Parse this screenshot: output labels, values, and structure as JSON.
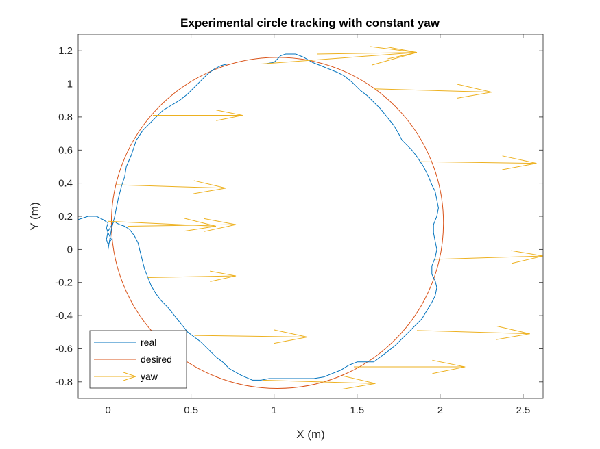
{
  "chart_data": {
    "type": "line",
    "title": "Experimental circle tracking with constant yaw",
    "xlabel": "X (m)",
    "ylabel": "Y (m)",
    "xlim": [
      -0.18,
      2.62
    ],
    "ylim": [
      -0.9,
      1.3
    ],
    "xticks": [
      0,
      0.5,
      1,
      1.5,
      2,
      2.5
    ],
    "xtick_labels": [
      "0",
      "0.5",
      "1",
      "1.5",
      "2",
      "2.5"
    ],
    "yticks": [
      -0.8,
      -0.6,
      -0.4,
      -0.2,
      0,
      0.2,
      0.4,
      0.6,
      0.8,
      1,
      1.2
    ],
    "ytick_labels": [
      "-0.8",
      "-0.6",
      "-0.4",
      "-0.2",
      "0",
      "0.2",
      "0.4",
      "0.6",
      "0.8",
      "1",
      "1.2"
    ],
    "grid": false,
    "legend_placement": "bottom-left",
    "colors": {
      "real": "#0072BD",
      "desired": "#D95319",
      "yaw": "#EDB120"
    },
    "series": [
      {
        "name": "real",
        "x": [
          -0.18,
          -0.12,
          -0.07,
          -0.03,
          0.0,
          -0.01,
          0.0,
          0.02,
          0.0,
          -0.01,
          0.0,
          0.03,
          0.04,
          0.05,
          0.06,
          0.08,
          0.1,
          0.11,
          0.14,
          0.17,
          0.21,
          0.25,
          0.29,
          0.33,
          0.38,
          0.43,
          0.48,
          0.52,
          0.56,
          0.6,
          0.64,
          0.68,
          0.72,
          0.78,
          0.86,
          0.94,
          1.0,
          1.04,
          1.07,
          1.1,
          1.13,
          1.18,
          1.23,
          1.28,
          1.33,
          1.38,
          1.42,
          1.47,
          1.52,
          1.56,
          1.6,
          1.64,
          1.68,
          1.72,
          1.75,
          1.77,
          1.8,
          1.83,
          1.86,
          1.88,
          1.9,
          1.91,
          1.93,
          1.95,
          1.97,
          1.98,
          1.99,
          1.98,
          1.96,
          1.96,
          1.97,
          1.98,
          1.97,
          1.95,
          1.95,
          1.97,
          1.98,
          1.97,
          1.95,
          1.92,
          1.89,
          1.85,
          1.81,
          1.77,
          1.73,
          1.68,
          1.64,
          1.6,
          1.55,
          1.5,
          1.45,
          1.4,
          1.35,
          1.3,
          1.24,
          1.17,
          1.1,
          1.03,
          0.97,
          0.92,
          0.87,
          0.8,
          0.73,
          0.69,
          0.65,
          0.62,
          0.59,
          0.56,
          0.52,
          0.48,
          0.44,
          0.4,
          0.36,
          0.32,
          0.29,
          0.26,
          0.24,
          0.22,
          0.21,
          0.2,
          0.19,
          0.18,
          0.16,
          0.13,
          0.1,
          0.07,
          0.05,
          0.04,
          0.03,
          0.02,
          0.0
        ],
        "y": [
          0.18,
          0.2,
          0.2,
          0.18,
          0.16,
          0.13,
          0.1,
          0.06,
          0.03,
          0.06,
          0.11,
          0.16,
          0.2,
          0.25,
          0.3,
          0.38,
          0.44,
          0.5,
          0.57,
          0.66,
          0.72,
          0.76,
          0.8,
          0.84,
          0.87,
          0.9,
          0.94,
          0.98,
          1.02,
          1.06,
          1.09,
          1.11,
          1.12,
          1.12,
          1.12,
          1.12,
          1.13,
          1.17,
          1.18,
          1.18,
          1.18,
          1.16,
          1.13,
          1.11,
          1.09,
          1.07,
          1.05,
          1.01,
          0.96,
          0.93,
          0.89,
          0.85,
          0.8,
          0.75,
          0.7,
          0.66,
          0.63,
          0.6,
          0.56,
          0.53,
          0.5,
          0.48,
          0.44,
          0.39,
          0.35,
          0.3,
          0.25,
          0.2,
          0.15,
          0.1,
          0.05,
          0.0,
          -0.05,
          -0.1,
          -0.15,
          -0.19,
          -0.23,
          -0.28,
          -0.32,
          -0.37,
          -0.42,
          -0.46,
          -0.5,
          -0.54,
          -0.58,
          -0.62,
          -0.65,
          -0.68,
          -0.68,
          -0.68,
          -0.7,
          -0.73,
          -0.75,
          -0.77,
          -0.78,
          -0.78,
          -0.78,
          -0.78,
          -0.78,
          -0.79,
          -0.79,
          -0.76,
          -0.72,
          -0.68,
          -0.65,
          -0.62,
          -0.59,
          -0.56,
          -0.53,
          -0.5,
          -0.45,
          -0.4,
          -0.35,
          -0.31,
          -0.27,
          -0.22,
          -0.17,
          -0.12,
          -0.08,
          -0.04,
          0.0,
          0.04,
          0.08,
          0.12,
          0.14,
          0.15,
          0.16,
          0.17,
          0.16,
          0.12,
          0.0
        ]
      },
      {
        "name": "desired",
        "type": "circle",
        "center": [
          1.02,
          0.16
        ],
        "radius": 1.0
      },
      {
        "name": "yaw",
        "type": "quiver",
        "vectors": [
          {
            "x": 0.92,
            "y": 1.12,
            "u": 0.94,
            "v": 0.07
          },
          {
            "x": 1.26,
            "y": 1.18,
            "u": 0.6,
            "v": 0.01
          },
          {
            "x": 1.6,
            "y": 0.97,
            "u": 0.71,
            "v": -0.02
          },
          {
            "x": 0.27,
            "y": 0.81,
            "u": 0.54,
            "v": 0.0
          },
          {
            "x": 1.88,
            "y": 0.53,
            "u": 0.7,
            "v": -0.01
          },
          {
            "x": 0.05,
            "y": 0.39,
            "u": 0.66,
            "v": -0.02
          },
          {
            "x": 0.0,
            "y": 0.17,
            "u": 0.65,
            "v": -0.03
          },
          {
            "x": 0.12,
            "y": 0.14,
            "u": 0.65,
            "v": 0.01
          },
          {
            "x": 1.97,
            "y": -0.06,
            "u": 0.65,
            "v": 0.02
          },
          {
            "x": 0.24,
            "y": -0.17,
            "u": 0.53,
            "v": 0.01
          },
          {
            "x": 1.86,
            "y": -0.49,
            "u": 0.68,
            "v": -0.02
          },
          {
            "x": 0.52,
            "y": -0.52,
            "u": 0.68,
            "v": -0.01
          },
          {
            "x": 1.48,
            "y": -0.71,
            "u": 0.67,
            "v": 0.0
          },
          {
            "x": 0.93,
            "y": -0.79,
            "u": 0.68,
            "v": -0.02
          }
        ]
      }
    ],
    "legend": [
      "real",
      "desired",
      "yaw"
    ]
  }
}
